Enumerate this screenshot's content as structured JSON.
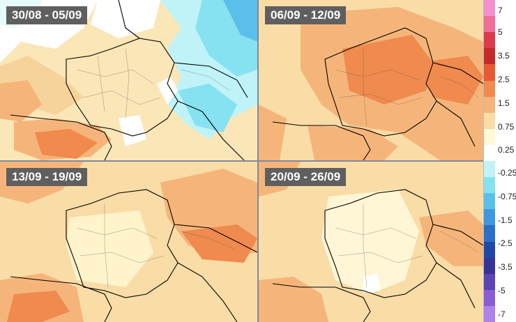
{
  "panels": [
    {
      "label": "30/08 - 05/09"
    },
    {
      "label": "06/09 - 12/09"
    },
    {
      "label": "13/09 - 19/09"
    },
    {
      "label": "20/09 - 26/09"
    }
  ],
  "legend": {
    "ticks": [
      "7",
      "5",
      "3.5",
      "2.5",
      "1.5",
      "0.75",
      "0.25",
      "-0.25",
      "-0.75",
      "-1.5",
      "-2.5",
      "-3.5",
      "-5",
      "-7"
    ],
    "colors": [
      "#f28fcf",
      "#ef6f9a",
      "#de3a4d",
      "#c42a2a",
      "#e85a34",
      "#f08a4e",
      "#f5b57a",
      "#f9dca6",
      "#fff9d6",
      "#ffffff",
      "#bff3f8",
      "#86e2f0",
      "#5ac0ea",
      "#3f98dd",
      "#2c6ec8",
      "#1e48a6",
      "#353497",
      "#5b45b6",
      "#8a5dd5",
      "#b081ea"
    ]
  }
}
